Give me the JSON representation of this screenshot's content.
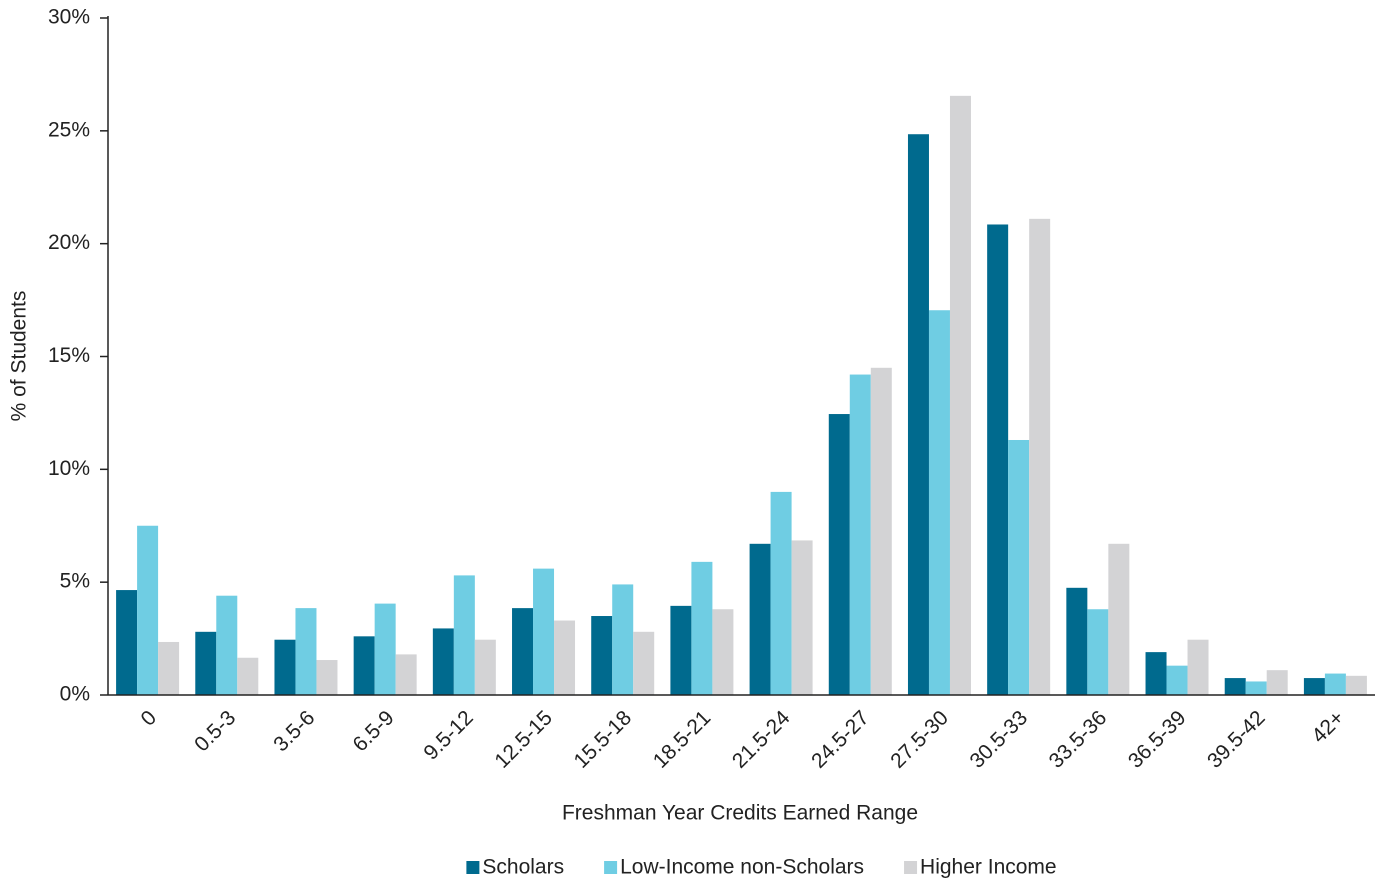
{
  "chart_data": {
    "type": "bar",
    "x_label": "Freshman Year Credits Earned Range",
    "y_label": "% of Students",
    "categories": [
      "0",
      "0.5-3",
      "3.5-6",
      "6.5-9",
      "9.5-12",
      "12.5-15",
      "15.5-18",
      "18.5-21",
      "21.5-24",
      "24.5-27",
      "27.5-30",
      "30.5-33",
      "33.5-36",
      "36.5-39",
      "39.5-42",
      "42+"
    ],
    "series": [
      {
        "name": "Scholars",
        "color": "#006a8e",
        "values": [
          4.65,
          2.8,
          2.45,
          2.6,
          2.95,
          3.85,
          3.5,
          3.95,
          6.7,
          12.45,
          24.85,
          20.85,
          4.75,
          1.9,
          0.75,
          0.75
        ]
      },
      {
        "name": "Low-Income non-Scholars",
        "color": "#6fcde3",
        "values": [
          7.5,
          4.4,
          3.85,
          4.05,
          5.3,
          5.6,
          4.9,
          5.9,
          9.0,
          14.2,
          17.05,
          11.3,
          3.8,
          1.3,
          0.6,
          0.95
        ]
      },
      {
        "name": "Higher Income",
        "color": "#d3d3d5",
        "values": [
          2.35,
          1.65,
          1.55,
          1.8,
          2.45,
          3.3,
          2.8,
          3.8,
          6.85,
          14.5,
          26.55,
          21.1,
          6.7,
          2.45,
          1.1,
          0.85
        ]
      }
    ],
    "ylim": [
      0,
      30
    ],
    "yticks": [
      {
        "value": 0,
        "label": "0%"
      },
      {
        "value": 5,
        "label": "5%"
      },
      {
        "value": 10,
        "label": "10%"
      },
      {
        "value": 15,
        "label": "15%"
      },
      {
        "value": 20,
        "label": "20%"
      },
      {
        "value": 25,
        "label": "25%"
      },
      {
        "value": 30,
        "label": "30%"
      }
    ],
    "grid": false,
    "legend": "bottom"
  }
}
